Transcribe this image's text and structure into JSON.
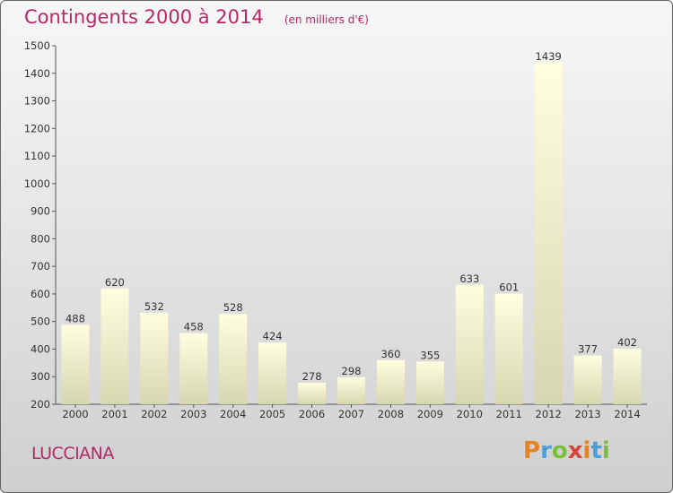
{
  "header": {
    "title": "Contingents 2000 à 2014",
    "subtitle": "(en milliers d'€)"
  },
  "footer": {
    "commune": "LUCCIANA",
    "logo_text": "Proxiti",
    "logo_colors": [
      "#e8821e",
      "#4a9fd8",
      "#7bbf3a",
      "#d8453a",
      "#e8821e",
      "#4a9fd8",
      "#7bbf3a"
    ]
  },
  "colors": {
    "title": "#b52a66",
    "bar_light": "#ffffe0",
    "bar_dark": "#d6d6b0",
    "axis": "#333333"
  },
  "chart_data": {
    "type": "bar",
    "title": "Contingents 2000 à 2014",
    "subtitle": "(en milliers d'€)",
    "categories": [
      "2000",
      "2001",
      "2002",
      "2003",
      "2004",
      "2005",
      "2006",
      "2007",
      "2008",
      "2009",
      "2010",
      "2011",
      "2012",
      "2013",
      "2014"
    ],
    "values": [
      488,
      620,
      532,
      458,
      528,
      424,
      278,
      298,
      360,
      355,
      633,
      601,
      1439,
      377,
      402
    ],
    "ylim": [
      200,
      1500
    ],
    "yticks": [
      200,
      300,
      400,
      500,
      600,
      700,
      800,
      900,
      1000,
      1100,
      1200,
      1300,
      1400,
      1500
    ],
    "grid": false,
    "legend": "none"
  }
}
